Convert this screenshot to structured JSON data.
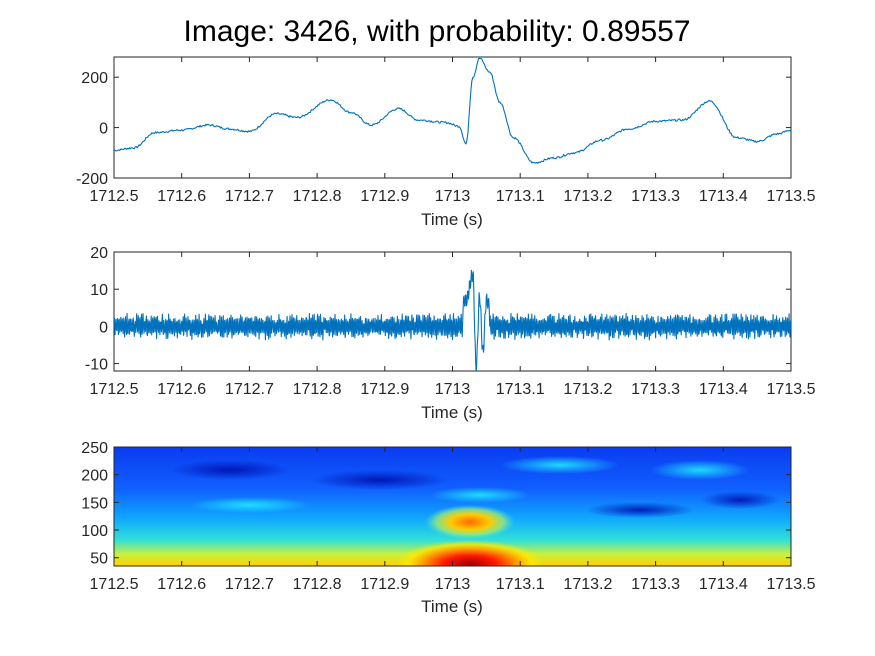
{
  "title": "Image: 3426, with probability: 0.89557",
  "chart_data": [
    {
      "type": "line",
      "xlabel": "Time (s)",
      "xlim": [
        1712.5,
        1713.5
      ],
      "ylim": [
        -200,
        280
      ],
      "xticks": [
        "1712.5",
        "1712.6",
        "1712.7",
        "1712.8",
        "1712.9",
        "1713",
        "1713.1",
        "1713.2",
        "1713.3",
        "1713.4",
        "1713.5"
      ],
      "yticks": [
        "-200",
        "0",
        "200"
      ],
      "color": "#0072BD",
      "series": [
        {
          "x": [
            1712.5,
            1712.53,
            1712.56,
            1712.6,
            1712.64,
            1712.67,
            1712.7,
            1712.74,
            1712.77,
            1712.82,
            1712.85,
            1712.88,
            1712.92,
            1712.95,
            1712.99,
            1713.01,
            1713.02,
            1713.03,
            1713.04,
            1713.055,
            1713.07,
            1713.09,
            1713.12,
            1713.15,
            1713.18,
            1713.22,
            1713.26,
            1713.3,
            1713.34,
            1713.38,
            1713.42,
            1713.45,
            1713.48,
            1713.5
          ],
          "y": [
            -90,
            -80,
            -20,
            -10,
            10,
            -5,
            -15,
            55,
            40,
            110,
            60,
            10,
            75,
            30,
            20,
            5,
            -65,
            200,
            275,
            220,
            100,
            -40,
            -140,
            -120,
            -100,
            -50,
            -5,
            25,
            30,
            105,
            -40,
            -55,
            -25,
            -10
          ]
        }
      ]
    },
    {
      "type": "line",
      "xlabel": "Time (s)",
      "xlim": [
        1712.5,
        1713.5
      ],
      "ylim": [
        -12,
        20
      ],
      "xticks": [
        "1712.5",
        "1712.6",
        "1712.7",
        "1712.8",
        "1712.9",
        "1713",
        "1713.1",
        "1713.2",
        "1713.3",
        "1713.4",
        "1713.5"
      ],
      "yticks": [
        "-10",
        "0",
        "10",
        "20"
      ],
      "color": "#0072BD",
      "series": [
        {
          "x": [
            1712.5,
            1712.95,
            1713.0,
            1713.02,
            1713.03,
            1713.035,
            1713.04,
            1713.045,
            1713.05,
            1713.06,
            1713.08,
            1713.5
          ],
          "y": [
            0,
            0,
            1,
            7,
            14,
            -11,
            8,
            -7,
            7,
            3,
            1,
            0
          ]
        }
      ]
    },
    {
      "type": "heatmap",
      "xlabel": "Time (s)",
      "xlim": [
        1712.5,
        1713.5
      ],
      "ylim": [
        35,
        250
      ],
      "xticks": [
        "1712.5",
        "1712.6",
        "1712.7",
        "1712.8",
        "1712.9",
        "1713",
        "1713.1",
        "1713.2",
        "1713.3",
        "1713.4",
        "1713.5"
      ],
      "yticks": [
        "50",
        "100",
        "150",
        "200",
        "250"
      ],
      "colormap": [
        "#00008F",
        "#0000FF",
        "#00FFFF",
        "#FFFF00",
        "#FF0000",
        "#800000"
      ]
    }
  ]
}
